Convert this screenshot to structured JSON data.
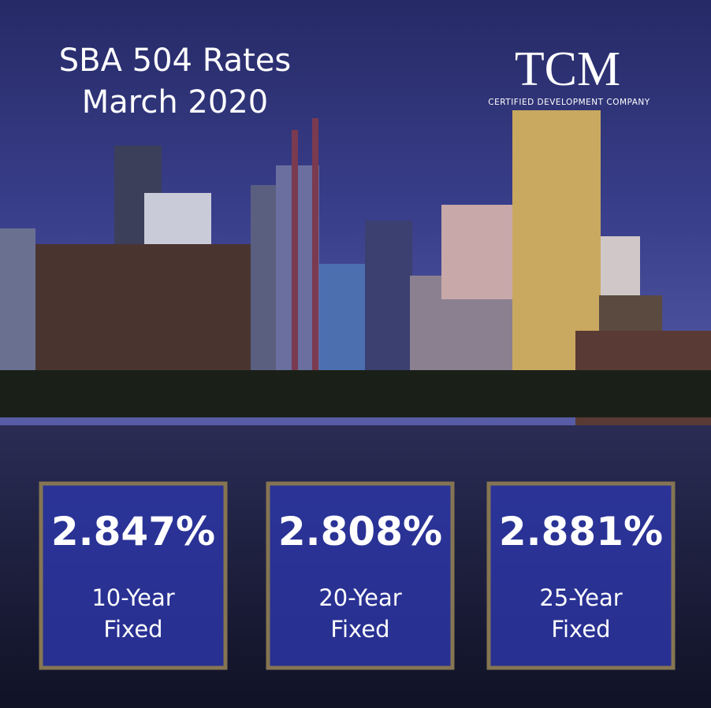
{
  "header": {
    "title_lines": [
      "SBA 504 Rates",
      "March 2020"
    ]
  },
  "logo": {
    "mark": "TCM",
    "tagline": "CERTIFIED DEVELOPMENT COMPANY"
  },
  "rates": [
    {
      "rate": "2.847%",
      "label_lines": [
        "10-Year",
        "Fixed"
      ]
    },
    {
      "rate": "2.808%",
      "label_lines": [
        "20-Year",
        "Fixed"
      ]
    },
    {
      "rate": "2.881%",
      "label_lines": [
        "25-Year",
        "Fixed"
      ]
    }
  ]
}
